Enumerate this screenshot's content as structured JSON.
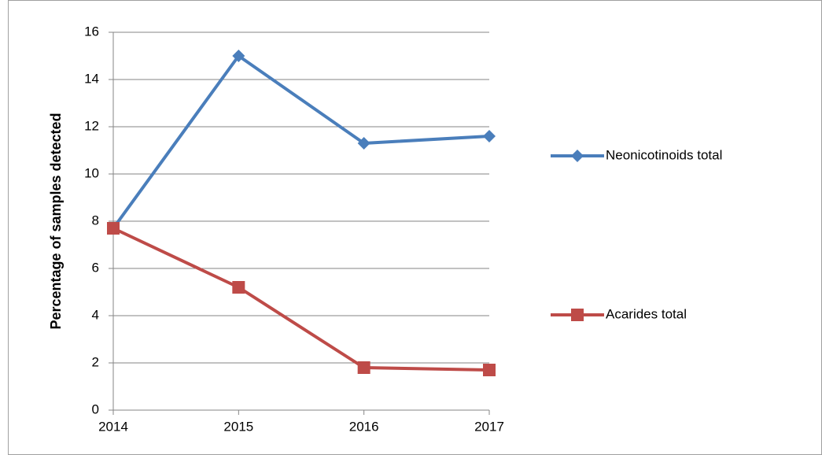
{
  "chart_data": {
    "type": "line",
    "y_label": "Percentage of samples detected",
    "categories": [
      "2014",
      "2015",
      "2016",
      "2017"
    ],
    "series": [
      {
        "name": "Neonicotinoids total",
        "color": "#4a7ebb",
        "marker": "diamond",
        "values": [
          7.7,
          15.0,
          11.3,
          11.6
        ]
      },
      {
        "name": "Acarides total",
        "color": "#be4b48",
        "marker": "square",
        "values": [
          7.7,
          5.2,
          1.8,
          1.7
        ]
      }
    ],
    "ylim": [
      0,
      16
    ],
    "yticks": [
      0,
      2,
      4,
      6,
      8,
      10,
      12,
      14,
      16
    ],
    "grid": true,
    "legend": "right"
  }
}
